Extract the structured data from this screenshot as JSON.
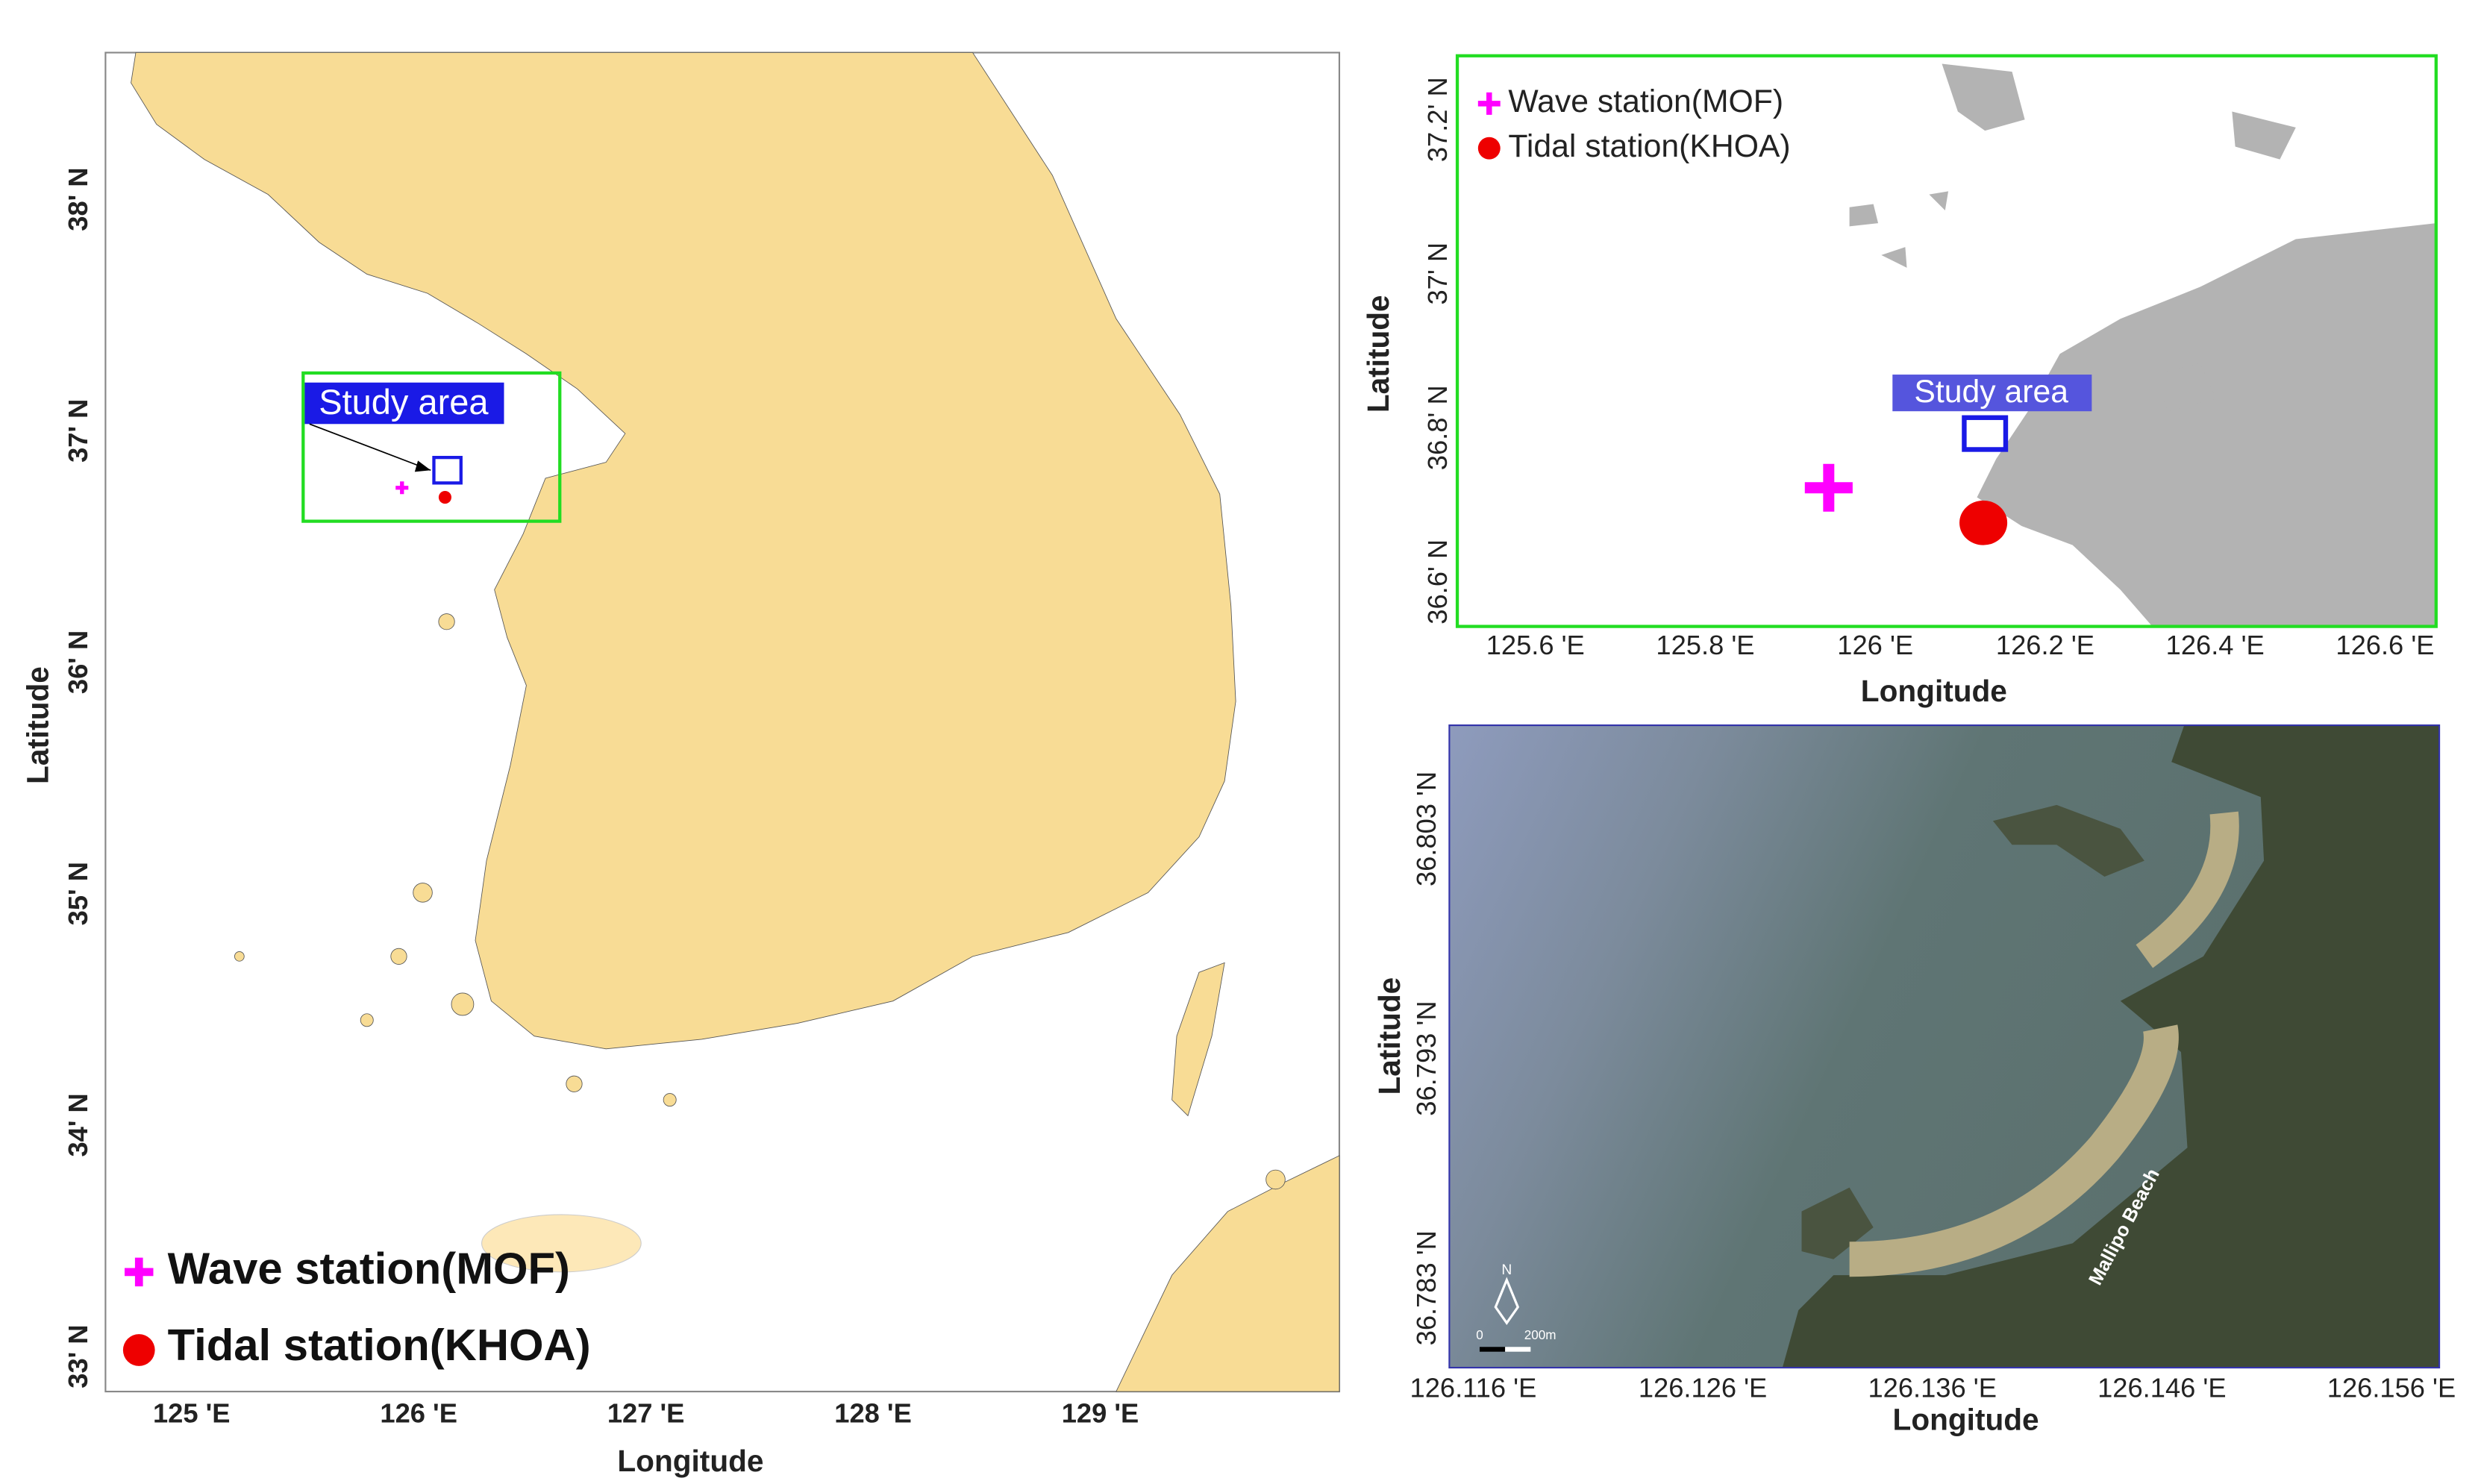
{
  "left_map": {
    "x_axis_title": "Longitude",
    "y_axis_title": "Latitude",
    "x_tick_labels": [
      "125 'E",
      "126 'E",
      "127 'E",
      "128 'E",
      "129 'E"
    ],
    "y_tick_labels": [
      "38' N",
      "37' N",
      "36' N",
      "35' N",
      "34' N",
      "33' N"
    ],
    "study_area_label": "Study area",
    "legend": [
      "Wave station(MOF)",
      "Tidal station(KHOA)"
    ]
  },
  "inset_map": {
    "x_axis_title": "Longitude",
    "y_axis_title": "Latitude",
    "x_tick_labels": [
      "125.6 'E",
      "125.8 'E",
      "126 'E",
      "126.2 'E",
      "126.4 'E",
      "126.6 'E"
    ],
    "y_tick_labels": [
      "37.2' N",
      "37' N",
      "36.8' N",
      "36.6' N"
    ],
    "study_area_label": "Study area",
    "legend": [
      "Wave station(MOF)",
      "Tidal station(KHOA)"
    ]
  },
  "satellite_map": {
    "x_axis_title": "Longitude",
    "y_axis_title": "Latitude",
    "x_tick_labels": [
      "126.116 'E",
      "126.126 'E",
      "126.136 'E",
      "126.146 'E",
      "126.156 'E"
    ],
    "y_tick_labels": [
      "36.803 'N",
      "36.793 'N",
      "36.783 'N"
    ],
    "beach_label": "Mallipo Beach",
    "north_label": "N",
    "scale_labels": [
      "0",
      "200m"
    ]
  }
}
